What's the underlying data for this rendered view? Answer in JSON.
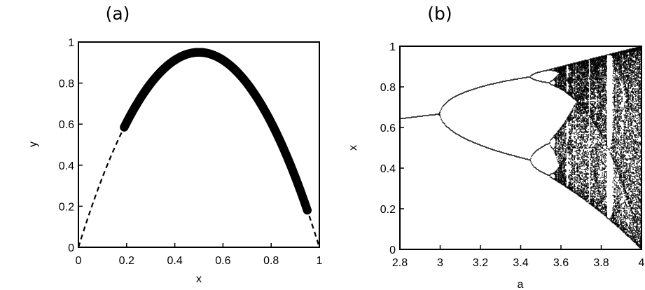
{
  "chart_data": [
    {
      "panel_label": "(a)",
      "type": "scatter",
      "xlabel": "x",
      "ylabel": "y",
      "xlim": [
        0,
        1
      ],
      "ylim": [
        0,
        1
      ],
      "xticks": [
        "0",
        "0.2",
        "0.4",
        "0.6",
        "0.8",
        "1"
      ],
      "yticks": [
        "0",
        "0.2",
        "0.4",
        "0.6",
        "0.8",
        "1"
      ],
      "series": [
        {
          "style": "dashed-curve",
          "equation": "y = 3.8 x (1 - x)",
          "x_range": [
            0,
            1
          ]
        },
        {
          "style": "thick-markers",
          "x_range": [
            0.19,
            0.95
          ],
          "color": "#000000"
        }
      ]
    },
    {
      "panel_label": "(b)",
      "type": "scatter",
      "xlabel": "a",
      "ylabel": "x",
      "xlim": [
        2.8,
        4
      ],
      "ylim": [
        0,
        1
      ],
      "xticks": [
        "2.8",
        "3",
        "3.2",
        "3.4",
        "3.6",
        "3.8",
        "4"
      ],
      "yticks": [
        "0",
        "0.2",
        "0.4",
        "0.6",
        "0.8",
        "1"
      ],
      "series": [
        {
          "style": "bifurcation-points",
          "map": "x_next = a x (1 - x)",
          "a_range": [
            2.8,
            4
          ],
          "color": "#000000"
        }
      ]
    }
  ]
}
